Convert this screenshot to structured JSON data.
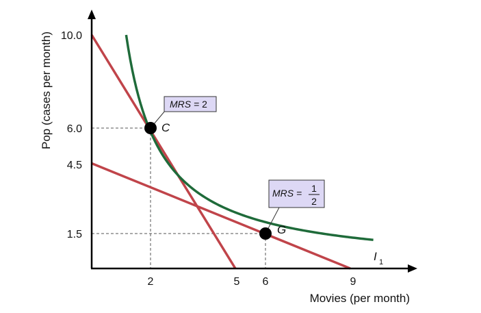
{
  "chart_data": {
    "type": "line",
    "xlabel": "Movies (per month)",
    "ylabel": "Pop (cases per month)",
    "x_ticks": [
      "2",
      "5",
      "6",
      "9"
    ],
    "y_ticks": [
      "10.0",
      "6.0",
      "4.5",
      "1.5"
    ],
    "series": [
      {
        "name": "I",
        "subscript": "1",
        "kind": "indifference-curve",
        "color": "#1f6b3a",
        "function": "y = 12 / x"
      },
      {
        "kind": "budget-line",
        "color": "#c0444a",
        "intercept": 10.0,
        "slope": -2,
        "x": [
          0,
          5
        ],
        "y": [
          10.0,
          0
        ]
      },
      {
        "kind": "budget-line",
        "color": "#c0444a",
        "intercept": 4.5,
        "slope": -0.5,
        "x": [
          0,
          9
        ],
        "y": [
          4.5,
          0
        ]
      }
    ],
    "points": [
      {
        "label": "C",
        "x": 2,
        "y": 6.0,
        "mrs_prefix": "MRS = ",
        "mrs_value": "2"
      },
      {
        "label": "G",
        "x": 6,
        "y": 1.5,
        "mrs_prefix": "MRS = ",
        "mrs_numerator": "1",
        "mrs_denominator": "2"
      }
    ]
  },
  "colors": {
    "curve": "#1f6b3a",
    "budget": "#c0444a",
    "box_fill": "#ddd8f5",
    "axis": "#000000"
  }
}
